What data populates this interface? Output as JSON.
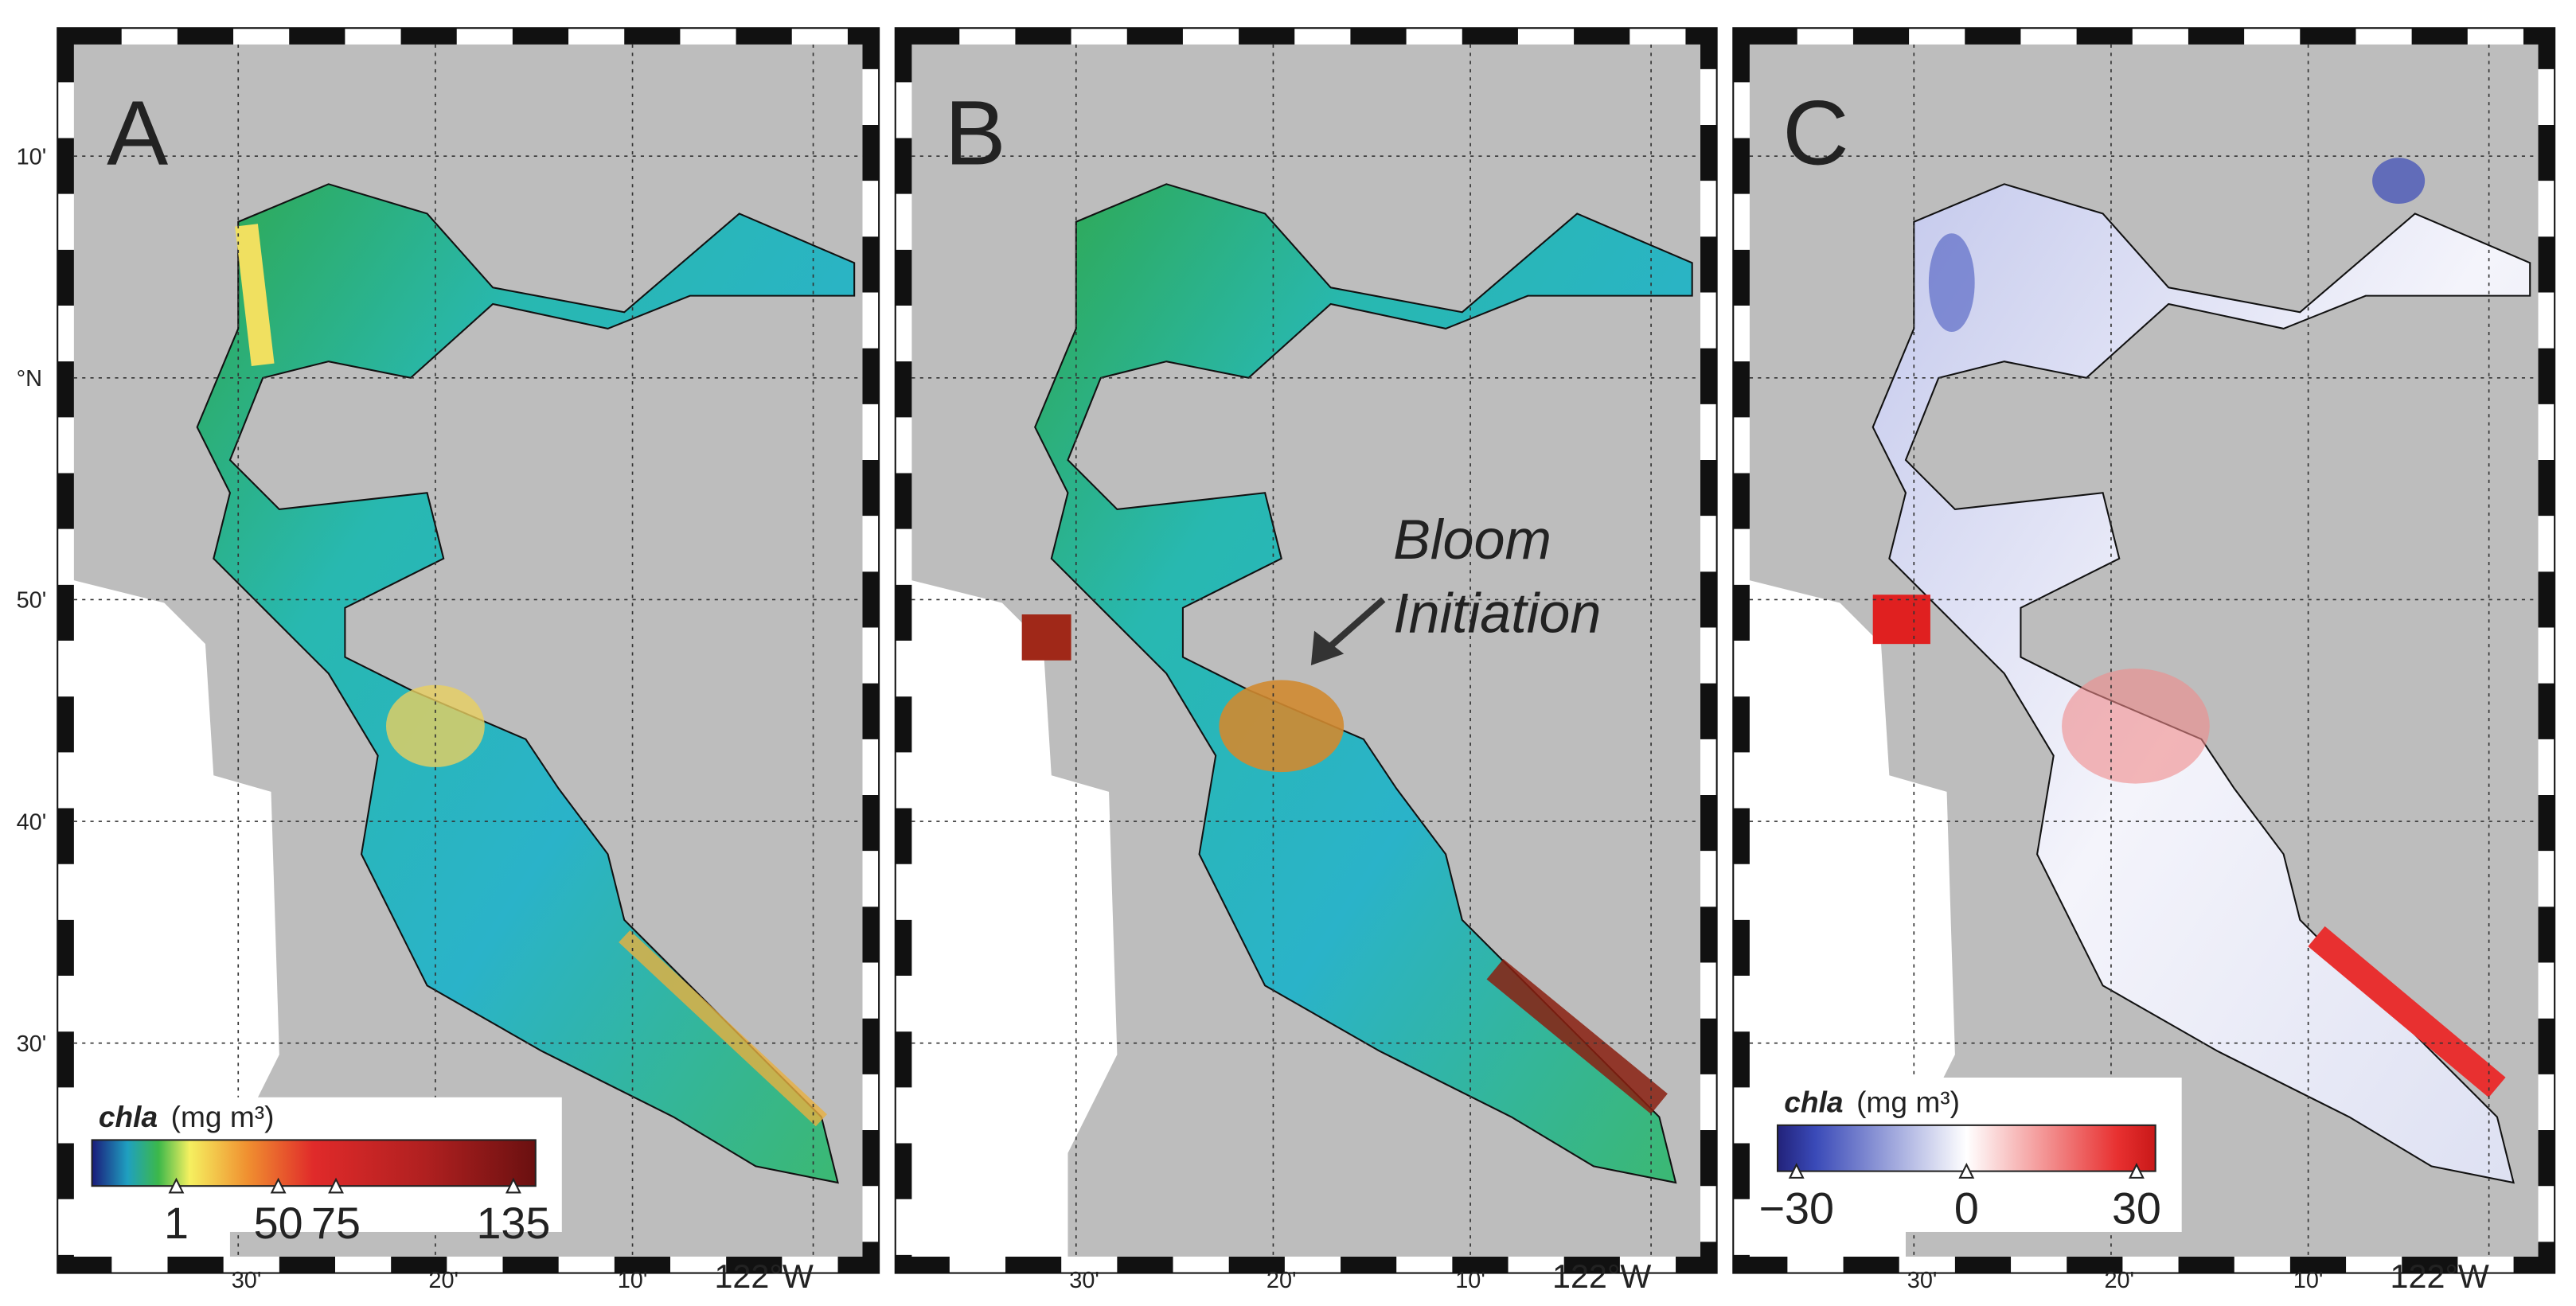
{
  "y_axis_labels": [
    "10'",
    "°N",
    "50'",
    "40'",
    "30'"
  ],
  "panels": [
    {
      "label": "A",
      "x_axis_labels": [
        "30'",
        "20'",
        "10'",
        "122°W"
      ],
      "colorbar": {
        "variable": "chla",
        "units": "(mg m³)",
        "ticks": [
          "1",
          "50",
          "75",
          "135"
        ]
      }
    },
    {
      "label": "B",
      "x_axis_labels": [
        "30'",
        "20'",
        "10'",
        "122°W"
      ],
      "annotation": [
        "Bloom",
        "Initiation"
      ]
    },
    {
      "label": "C",
      "x_axis_labels": [
        "30'",
        "20'",
        "10'",
        "122°W"
      ],
      "colorbar": {
        "variable": "chla",
        "units": "(mg m³)",
        "ticks": [
          "−30",
          "0",
          "30"
        ]
      }
    }
  ]
}
